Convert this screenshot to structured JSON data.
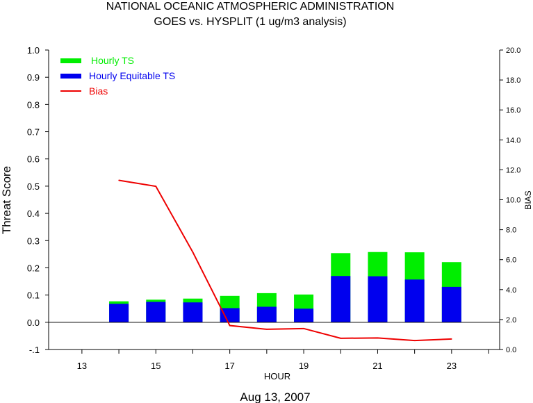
{
  "chart_data": {
    "type": "bar",
    "title": "NATIONAL OCEANIC ATMOSPHERIC ADMINISTRATION",
    "subtitle": "GOES vs. HYSPLIT  (1 ug/m3 analysis)",
    "xlabel": "HOUR",
    "ylabel": "Threat Score",
    "y2label": "BIAS",
    "footer": "Aug 13, 2007",
    "x_ticks": [
      "13",
      "15",
      "17",
      "19",
      "21",
      "23"
    ],
    "xlim": [
      12.1,
      24.3
    ],
    "ylim": [
      -0.1,
      1.0
    ],
    "y_ticks": [
      "-.1",
      "0.0",
      "0.1",
      "0.2",
      "0.3",
      "0.4",
      "0.5",
      "0.6",
      "0.7",
      "0.8",
      "0.9",
      "1.0"
    ],
    "y2lim": [
      0.0,
      20.0
    ],
    "y2_ticks": [
      "0.0",
      "2.0",
      "4.0",
      "6.0",
      "8.0",
      "10.0",
      "12.0",
      "14.0",
      "16.0",
      "18.0",
      "20.0"
    ],
    "legend_position": "top-left",
    "grid": false,
    "x": [
      14,
      15,
      16,
      17,
      18,
      19,
      20,
      21,
      22,
      23
    ],
    "series": [
      {
        "name": "Hourly TS",
        "kind": "bar",
        "axis": "left",
        "color": "#00ee00",
        "values": [
          0.077,
          0.083,
          0.087,
          0.097,
          0.107,
          0.102,
          0.254,
          0.258,
          0.257,
          0.221
        ]
      },
      {
        "name": "Hourly Equitable TS",
        "kind": "bar",
        "axis": "left",
        "color": "#0000ee",
        "values": [
          0.068,
          0.075,
          0.073,
          0.052,
          0.057,
          0.05,
          0.17,
          0.169,
          0.157,
          0.13
        ]
      },
      {
        "name": "Bias",
        "kind": "line",
        "axis": "right",
        "color": "#ee0000",
        "values": [
          11.3,
          10.9,
          6.5,
          1.6,
          1.35,
          1.4,
          0.75,
          0.77,
          0.6,
          0.7
        ]
      }
    ]
  }
}
